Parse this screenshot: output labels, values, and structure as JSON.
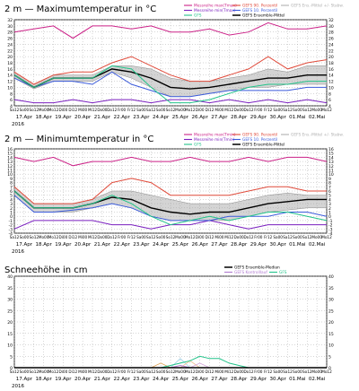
{
  "chart_data": [
    {
      "type": "line",
      "title": "2 m — Maximumtemperatur in °C",
      "ylim": [
        4,
        32
      ],
      "yticks": [
        4,
        6,
        8,
        10,
        12,
        14,
        16,
        18,
        20,
        22,
        24,
        26,
        28,
        30,
        32
      ],
      "x_time_labels": [
        "Sa12",
        "So00",
        "So12",
        "Mo00",
        "Mo12",
        "Di00",
        "Di12",
        "Mi00",
        "Mi12",
        "Do00",
        "Do12",
        "Fr00",
        "Fr12",
        "Sa00",
        "Sa12",
        "So00",
        "So12",
        "Mo00",
        "Mo12",
        "Di00",
        "Di12",
        "Mi00",
        "Mi12",
        "Do00",
        "Do12",
        "Fr00",
        "Fr12",
        "Sa00",
        "Sa12",
        "So00",
        "So12",
        "Mo00",
        "Mo12"
      ],
      "x_date_labels": [
        "17.Apr",
        "18.Apr",
        "19.Apr",
        "20.Apr",
        "21.Apr",
        "22.Apr",
        "23.Apr",
        "24.Apr",
        "25.Apr",
        "26.Apr",
        "27.Apr",
        "28.Apr",
        "29.Apr",
        "30.Apr",
        "01.Mai",
        "02.Mai"
      ],
      "year_label": "2016",
      "grid": true,
      "legend": [
        {
          "name": "Messreihe max(Tmax)",
          "color": "#cc2288"
        },
        {
          "name": "Messreihe min(Tmax)",
          "color": "#7a1fbf"
        },
        {
          "name": "GFS",
          "color": "#22c48a"
        },
        {
          "name": "GEFS 90. Perzentil",
          "color": "#e04a3a"
        },
        {
          "name": "GEFS 10. Perzentil",
          "color": "#3b5bdb"
        },
        {
          "name": "GEFS Ensemble-Mittel",
          "color": "#000000"
        },
        {
          "name": "GEFS Ens.-Mittel +/- Stabw.",
          "color": "#b0b0b0"
        }
      ],
      "series": [
        {
          "name": "Messreihe max(Tmax)",
          "color": "#cc2288",
          "x": [
            0,
            2,
            4,
            6,
            8,
            10,
            12,
            14,
            16,
            18,
            20,
            22,
            24,
            26,
            28,
            30,
            32
          ],
          "values": [
            28,
            29,
            30,
            26,
            30,
            30,
            29,
            30,
            28,
            28,
            29,
            27,
            28,
            31,
            29,
            29,
            30
          ]
        },
        {
          "name": "Messreihe min(Tmax)",
          "color": "#7a1fbf",
          "x": [
            0,
            2,
            4,
            6,
            8,
            10,
            12,
            14,
            16,
            18,
            20,
            22,
            24,
            26,
            28,
            30,
            32
          ],
          "values": [
            6,
            5,
            5,
            6,
            5,
            6,
            6,
            5,
            6,
            6,
            5,
            6,
            5,
            6,
            5,
            6,
            5
          ]
        },
        {
          "name": "GEFS 90. Perzentil",
          "color": "#e04a3a",
          "x": [
            0,
            2,
            4,
            6,
            8,
            10,
            12,
            14,
            16,
            18,
            20,
            22,
            24,
            26,
            28,
            30,
            32
          ],
          "values": [
            15,
            11,
            14,
            15,
            15,
            18,
            20,
            17,
            14,
            12,
            12,
            14,
            16,
            20,
            16,
            18,
            19
          ]
        },
        {
          "name": "GEFS 10. Perzentil",
          "color": "#3b5bdb",
          "x": [
            0,
            2,
            4,
            6,
            8,
            10,
            12,
            14,
            16,
            18,
            20,
            22,
            24,
            26,
            28,
            30,
            32
          ],
          "values": [
            13,
            10,
            12,
            12,
            11,
            15,
            11,
            9,
            7,
            7,
            8,
            9,
            9,
            9,
            9,
            10,
            10
          ]
        },
        {
          "name": "GEFS Ensemble-Mittel",
          "color": "#000000",
          "x": [
            0,
            2,
            4,
            6,
            8,
            10,
            12,
            14,
            16,
            18,
            20,
            22,
            24,
            26,
            28,
            30,
            32
          ],
          "values": [
            14,
            10,
            13,
            13,
            13,
            16,
            15,
            13,
            10,
            9.5,
            10,
            11,
            12,
            13,
            13,
            14,
            14
          ]
        },
        {
          "name": "GFS",
          "color": "#22c48a",
          "x": [
            0,
            2,
            4,
            6,
            8,
            10,
            12,
            14,
            16,
            18,
            20,
            22,
            24,
            26,
            28,
            30,
            32
          ],
          "values": [
            14,
            10,
            13,
            13,
            13,
            17,
            16,
            10,
            5,
            5,
            6,
            8,
            10,
            11,
            11,
            12,
            12
          ]
        }
      ],
      "band": {
        "name": "GEFS Ens.-Mittel +/- Stabw.",
        "color": "#b0b0b0",
        "x": [
          0,
          2,
          4,
          6,
          8,
          10,
          12,
          14,
          16,
          18,
          20,
          22,
          24,
          26,
          28,
          30,
          32
        ],
        "upper": [
          15,
          11,
          14,
          14,
          14,
          17,
          17,
          16,
          13,
          12,
          12,
          13,
          14,
          16,
          15,
          17,
          17
        ],
        "lower": [
          13,
          9.5,
          12,
          12,
          12,
          15,
          13,
          10,
          7,
          7,
          8,
          9,
          10,
          10,
          11,
          11,
          11
        ]
      }
    },
    {
      "type": "line",
      "title": "2 m — Minimumtemperatur in °C",
      "ylim": [
        -4,
        16
      ],
      "yticks": [
        -4,
        -3,
        -2,
        -1,
        0,
        1,
        2,
        3,
        4,
        5,
        6,
        7,
        8,
        9,
        10,
        11,
        12,
        13,
        14,
        15,
        16
      ],
      "x_time_labels": [
        "Sa12",
        "So00",
        "So12",
        "Mo00",
        "Mo12",
        "Di00",
        "Di12",
        "Mi00",
        "Mi12",
        "Do00",
        "Do12",
        "Fr00",
        "Fr12",
        "Sa00",
        "Sa12",
        "So00",
        "So12",
        "Mo00",
        "Mo12",
        "Di00",
        "Di12",
        "Mi00",
        "Mi12",
        "Do00",
        "Do12",
        "Fr00",
        "Fr12",
        "Sa00",
        "Sa12",
        "So00",
        "So12",
        "Mo00",
        "Mo12"
      ],
      "x_date_labels": [
        "17.Apr",
        "18.Apr",
        "19.Apr",
        "20.Apr",
        "21.Apr",
        "22.Apr",
        "23.Apr",
        "24.Apr",
        "25.Apr",
        "26.Apr",
        "27.Apr",
        "28.Apr",
        "29.Apr",
        "30.Apr",
        "01.Mai",
        "02.Mai"
      ],
      "year_label": "2016",
      "grid": true,
      "legend": [
        {
          "name": "Messreihe max(Tmin)",
          "color": "#cc2288"
        },
        {
          "name": "Messreihe min(Tmin)",
          "color": "#7a1fbf"
        },
        {
          "name": "GFS",
          "color": "#22c48a"
        },
        {
          "name": "GEFS 90. Perzentil",
          "color": "#e04a3a"
        },
        {
          "name": "GEFS 10. Perzentil",
          "color": "#3b5bdb"
        },
        {
          "name": "GEFS Ensemble-Mittel",
          "color": "#000000"
        },
        {
          "name": "GEFS Ens.-Mittel +/- Stabw.",
          "color": "#b0b0b0"
        }
      ],
      "series": [
        {
          "name": "Messreihe max(Tmin)",
          "color": "#cc2288",
          "x": [
            0,
            2,
            4,
            6,
            8,
            10,
            12,
            14,
            16,
            18,
            20,
            22,
            24,
            26,
            28,
            30,
            32
          ],
          "values": [
            14,
            13,
            14,
            12,
            13,
            13,
            14,
            13,
            13,
            14,
            13,
            13,
            14,
            13,
            14,
            14,
            13
          ]
        },
        {
          "name": "Messreihe min(Tmin)",
          "color": "#7a1fbf",
          "x": [
            0,
            2,
            4,
            6,
            8,
            10,
            12,
            14,
            16,
            18,
            20,
            22,
            24,
            26,
            28,
            30,
            32
          ],
          "values": [
            -3,
            -1,
            -1,
            -1,
            -1,
            -2,
            -2,
            -3,
            -2,
            -2,
            -1,
            -2,
            -3,
            -2,
            -2,
            -2,
            -2
          ]
        },
        {
          "name": "GEFS 90. Perzentil",
          "color": "#e04a3a",
          "x": [
            0,
            2,
            4,
            6,
            8,
            10,
            12,
            14,
            16,
            18,
            20,
            22,
            24,
            26,
            28,
            30,
            32
          ],
          "values": [
            7,
            3,
            3,
            3,
            4,
            8,
            9,
            8,
            5,
            5,
            5,
            5,
            6,
            7,
            7,
            6,
            6
          ]
        },
        {
          "name": "GEFS 10. Perzentil",
          "color": "#3b5bdb",
          "x": [
            0,
            2,
            4,
            6,
            8,
            10,
            12,
            14,
            16,
            18,
            20,
            22,
            24,
            26,
            28,
            30,
            32
          ],
          "values": [
            5,
            1,
            1,
            1.5,
            2,
            3,
            2,
            0,
            -1,
            -1,
            -1,
            0,
            0,
            0,
            1,
            1,
            0
          ]
        },
        {
          "name": "GEFS Ensemble-Mittel",
          "color": "#000000",
          "x": [
            0,
            2,
            4,
            6,
            8,
            10,
            12,
            14,
            16,
            18,
            20,
            22,
            24,
            26,
            28,
            30,
            32
          ],
          "values": [
            6,
            2,
            2,
            2,
            3,
            4.5,
            4,
            2,
            1,
            0.5,
            1,
            1,
            2,
            3,
            3.5,
            4,
            4
          ]
        },
        {
          "name": "GFS",
          "color": "#22c48a",
          "x": [
            0,
            2,
            4,
            6,
            8,
            10,
            12,
            14,
            16,
            18,
            20,
            22,
            24,
            26,
            28,
            30,
            32
          ],
          "values": [
            6,
            2,
            2,
            2,
            3,
            5,
            3,
            0,
            -2,
            -1,
            0,
            -1,
            0,
            1,
            1,
            0,
            -1
          ]
        }
      ],
      "band": {
        "name": "GEFS Ens.-Mittel +/- Stabw.",
        "color": "#b0b0b0",
        "x": [
          0,
          2,
          4,
          6,
          8,
          10,
          12,
          14,
          16,
          18,
          20,
          22,
          24,
          26,
          28,
          30,
          32
        ],
        "upper": [
          7,
          3,
          3,
          3,
          4,
          6,
          6,
          5,
          4,
          3,
          3,
          3,
          4,
          5,
          5.5,
          5,
          5
        ],
        "lower": [
          5,
          1,
          1,
          1,
          2,
          3,
          2,
          0,
          -1,
          -1,
          -1,
          -1,
          0,
          1,
          1.5,
          2,
          2
        ]
      }
    },
    {
      "type": "line",
      "title": "Schneehöhe in cm",
      "ylim": [
        0,
        40
      ],
      "yticks": [
        0,
        5,
        10,
        15,
        20,
        25,
        30,
        35,
        40
      ],
      "x_time_labels": [
        "Sa12",
        "So00",
        "So12",
        "Mo00",
        "Mo12",
        "Di00",
        "Di12",
        "Mi00",
        "Mi12",
        "Do00",
        "Do12",
        "Fr00",
        "Fr12",
        "Sa00",
        "Sa12",
        "So00",
        "So12",
        "Mo00",
        "Mo12",
        "Di00",
        "Di12",
        "Mi00",
        "Mi12",
        "Do00",
        "Do12",
        "Fr00",
        "Fr12",
        "Sa00",
        "Sa12",
        "So00",
        "So12",
        "Mo00",
        "Mo12"
      ],
      "x_date_labels": [
        "17.Apr",
        "18.Apr",
        "19.Apr",
        "20.Apr",
        "21.Apr",
        "22.Apr",
        "23.Apr",
        "24.Apr",
        "25.Apr",
        "26.Apr",
        "27.Apr",
        "28.Apr",
        "29.Apr",
        "30.Apr",
        "01.Mai",
        "02.Mai"
      ],
      "year_label": "2016",
      "grid": true,
      "legend": [
        {
          "name": "GEFS Ensemble-Median",
          "color": "#000000"
        },
        {
          "name": "GEFS Kontrolllauf",
          "color": "#b07ad0"
        },
        {
          "name": "GFS",
          "color": "#22c48a"
        }
      ],
      "series": [
        {
          "name": "GFS",
          "color": "#22c48a",
          "x": [
            14,
            15,
            16,
            17,
            18,
            19,
            20,
            21,
            22,
            23,
            24,
            25,
            26,
            27,
            28,
            29,
            30,
            31,
            32
          ],
          "values": [
            0,
            0,
            1,
            2,
            3,
            5,
            4,
            4,
            2,
            1,
            0,
            0,
            0,
            0,
            0,
            0,
            0,
            0,
            0
          ]
        },
        {
          "name": "GEFS Kontrolllauf",
          "color": "#b07ad0",
          "x": [
            14,
            15,
            16,
            17,
            18,
            19,
            20,
            21,
            22,
            23,
            24,
            25,
            26,
            27,
            28,
            29,
            30,
            31,
            32
          ],
          "values": [
            0,
            0,
            0,
            1,
            0,
            0,
            0,
            0,
            0,
            0,
            0,
            0,
            0,
            0,
            0,
            0,
            0,
            0,
            0
          ]
        },
        {
          "name": "GEFS Ensemble-Median",
          "color": "#000000",
          "x": [
            0,
            32
          ],
          "values": [
            0,
            0
          ]
        }
      ],
      "members": [
        {
          "color": "#e0a050",
          "x": [
            14,
            15,
            16
          ],
          "values": [
            0,
            2,
            0
          ]
        },
        {
          "color": "#9cd0e8",
          "x": [
            16,
            17,
            18
          ],
          "values": [
            0,
            4,
            0
          ]
        },
        {
          "color": "#f0c090",
          "x": [
            17,
            18,
            19
          ],
          "values": [
            0,
            3,
            0
          ]
        },
        {
          "color": "#d0a0d8",
          "x": [
            18,
            19,
            20
          ],
          "values": [
            0,
            2,
            0
          ]
        }
      ]
    }
  ]
}
